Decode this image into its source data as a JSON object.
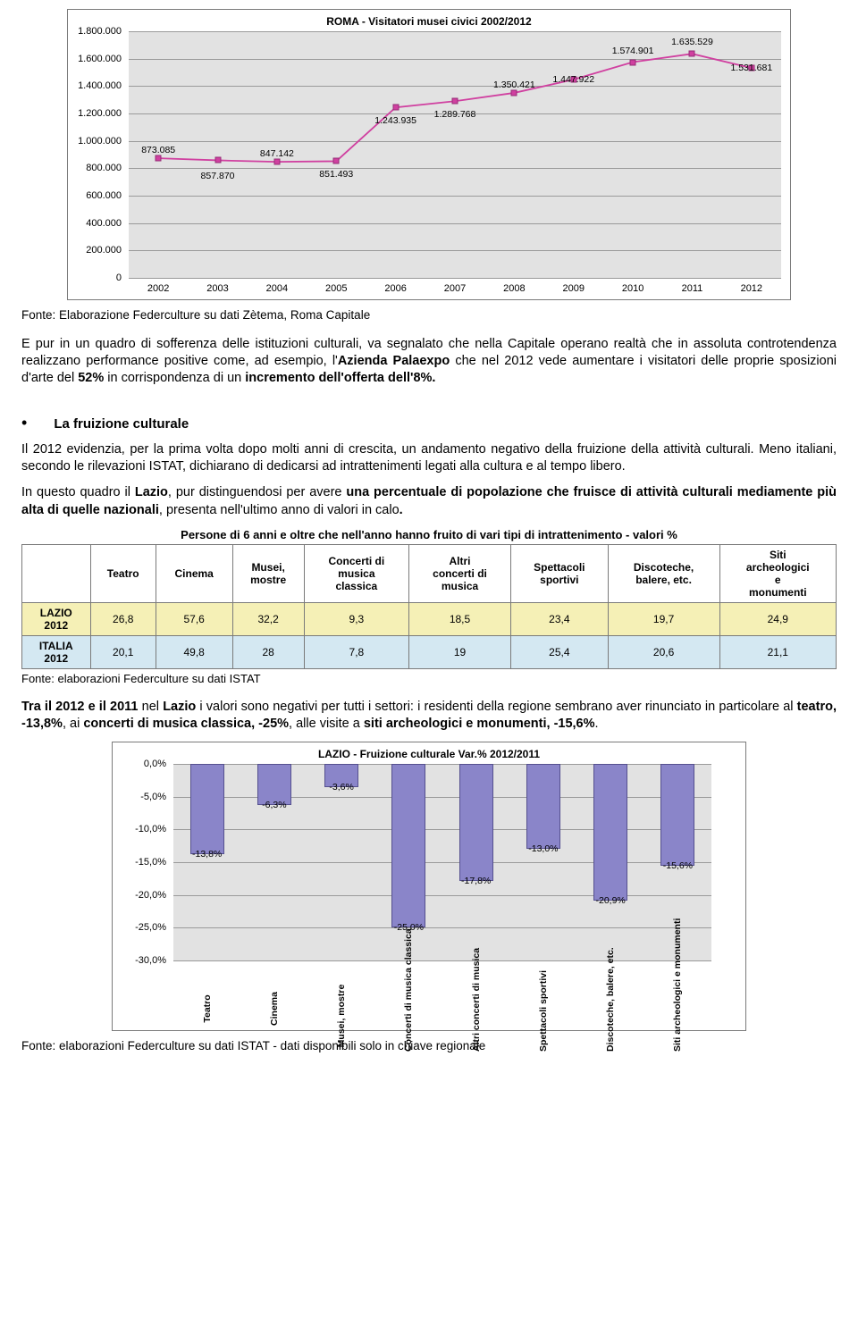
{
  "chart1": {
    "title": "ROMA - Visitatori musei civici 2002/2012",
    "type": "line",
    "plot_bg": "#e2e2e2",
    "grid_color": "#9a9a9a",
    "line_color": "#d040a0",
    "marker_color": "#d040a0",
    "ylim": [
      0,
      1800000
    ],
    "ytick_step": 200000,
    "yticks": [
      "0",
      "200.000",
      "400.000",
      "600.000",
      "800.000",
      "1.000.000",
      "1.200.000",
      "1.400.000",
      "1.600.000",
      "1.800.000"
    ],
    "categories": [
      "2002",
      "2003",
      "2004",
      "2005",
      "2006",
      "2007",
      "2008",
      "2009",
      "2010",
      "2011",
      "2012"
    ],
    "values": [
      873085,
      857870,
      847142,
      851493,
      1243935,
      1289768,
      1350421,
      1447922,
      1574901,
      1635529,
      1531681
    ],
    "labels": [
      "873.085",
      "857.870",
      "847.142",
      "851.493",
      "1.243.935",
      "1.289.768",
      "1.350.421",
      "1.447.922",
      "1.574.901",
      "1.635.529",
      "1.531.681"
    ],
    "label_dy": [
      -15,
      12,
      -15,
      9,
      9,
      9,
      -15,
      -6,
      -19,
      -19,
      -6
    ]
  },
  "source1": "Fonte: Elaborazione Federculture su dati Zètema, Roma Capitale",
  "para1_a": "E pur in un quadro di sofferenza delle istituzioni culturali, va segnalato che nella Capitale operano realtà che in assoluta controtendenza realizzano performance positive come, ad esempio, l'",
  "para1_b": "Azienda Palaexpo",
  "para1_c": " che nel 2012 vede aumentare i visitatori delle proprie sposizioni d'arte del ",
  "para1_d": "52%",
  "para1_e": " in corrispondenza di un ",
  "para1_f": "incremento dell'offerta dell'8%.",
  "section2_title": "La fruizione culturale",
  "para2_a": "Il 2012 evidenzia, per la prima volta dopo molti anni di crescita, un andamento negativo della fruizione della attività culturali. Meno italiani, secondo le rilevazioni ISTAT, dichiarano di dedicarsi ad intrattenimenti legati alla cultura e al tempo libero.",
  "para2_b1": "In questo quadro il ",
  "para2_b2": "Lazio",
  "para2_b3": ", pur distinguendosi per avere ",
  "para2_b4": "una percentuale di popolazione che fruisce di attività culturali mediamente più alta di quelle nazionali",
  "para2_b5": ", presenta nell'ultimo anno di valori in calo",
  "para2_b6": ".",
  "table": {
    "title": "Persone di 6 anni e oltre che nell'anno hanno fruito di vari tipi di intrattenimento - valori %",
    "columns": [
      "",
      "Teatro",
      "Cinema",
      "Musei, mostre",
      "Concerti di musica classica",
      "Altri concerti di musica",
      "Spettacoli sportivi",
      "Discoteche, balere, etc.",
      "Siti archeologici e monumenti"
    ],
    "rows": [
      {
        "hdr": "LAZIO 2012",
        "vals": [
          "26,8",
          "57,6",
          "32,2",
          "9,3",
          "18,5",
          "23,4",
          "19,7",
          "24,9"
        ],
        "cls": "lazio"
      },
      {
        "hdr": "ITALIA 2012",
        "vals": [
          "20,1",
          "49,8",
          "28",
          "7,8",
          "19",
          "25,4",
          "20,6",
          "21,1"
        ],
        "cls": "italia"
      }
    ]
  },
  "source_table": "Fonte: elaborazioni Federculture su dati ISTAT",
  "para3_a": "Tra il 2012 e il 2011",
  "para3_b": " nel ",
  "para3_c": "Lazio",
  "para3_d": " i valori sono negativi per tutti i settori: i residenti della regione sembrano aver rinunciato in particolare al ",
  "para3_e": "teatro, -13,8%",
  "para3_f": ", ai ",
  "para3_g": "concerti di musica classica, -25%",
  "para3_h": ", alle visite a ",
  "para3_i": "siti archeologici e  monumenti, -15,6%",
  "para3_j": ".",
  "chart2": {
    "title": "LAZIO - Fruizione culturale Var.% 2012/2011",
    "type": "bar",
    "plot_bg": "#e2e2e2",
    "bar_color": "#8a85c9",
    "bar_border": "#55508f",
    "ylim": [
      -30,
      0
    ],
    "ytick_step": 5,
    "yticks": [
      "0,0%",
      "-5,0%",
      "-10,0%",
      "-15,0%",
      "-20,0%",
      "-25,0%",
      "-30,0%"
    ],
    "categories": [
      "Teatro",
      "Cinema",
      "Musei, mostre",
      "Concerti di musica classica",
      "Altri concerti di musica",
      "Spettacoli sportivi",
      "Discoteche, balere, etc.",
      "Siti archeologici e monumenti"
    ],
    "values": [
      -13.8,
      -6.3,
      -3.6,
      -25.0,
      -17.8,
      -13.0,
      -20.9,
      -15.6
    ],
    "labels": [
      "-13,8%",
      "-6,3%",
      "-3,6%",
      "-25,0%",
      "-17,8%",
      "-13,0%",
      "-20,9%",
      "-15,6%"
    ]
  },
  "source2": "Fonte: elaborazioni Federculture su dati ISTAT -  dati disponibili solo in chiave regionale"
}
